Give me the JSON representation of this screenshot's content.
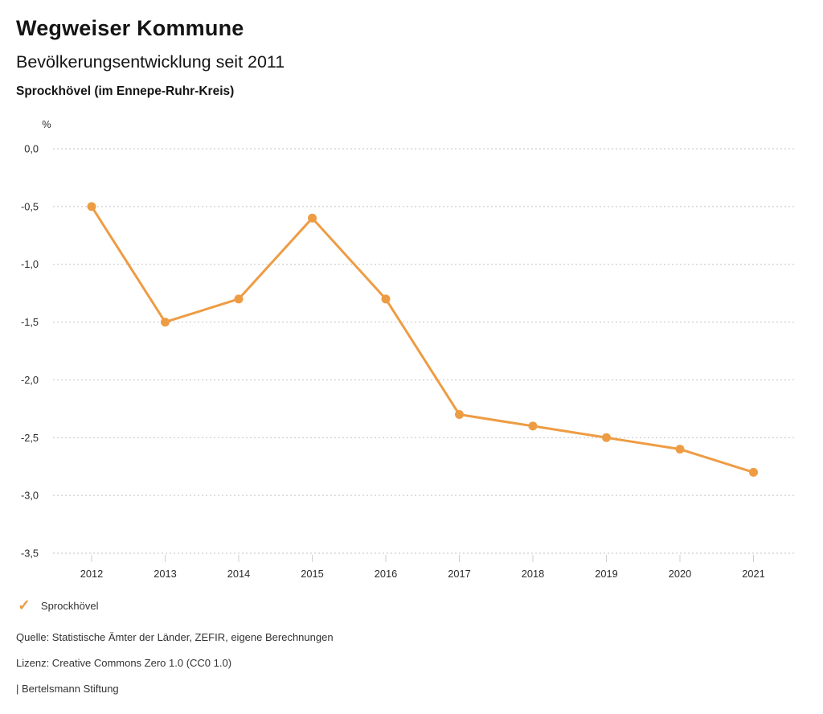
{
  "header": {
    "title": "Wegweiser Kommune",
    "subtitle": "Bevölkerungsentwicklung seit 2011",
    "region": "Sprockhövel (im Ennepe-Ruhr-Kreis)"
  },
  "chart_data": {
    "type": "line",
    "title": "Bevölkerungsentwicklung seit 2011",
    "subtitle": "Sprockhövel (im Ennepe-Ruhr-Kreis)",
    "unit": "%",
    "categories": [
      "2012",
      "2013",
      "2014",
      "2015",
      "2016",
      "2017",
      "2018",
      "2019",
      "2020",
      "2021"
    ],
    "series": [
      {
        "name": "Sprockhövel",
        "color": "#EE9C44",
        "values": [
          -0.5,
          -1.5,
          -1.3,
          -0.6,
          -1.3,
          -2.3,
          -2.4,
          -2.5,
          -2.6,
          -2.8
        ]
      }
    ],
    "ylim": [
      -3.5,
      0.0
    ],
    "ytick_step": 0.5,
    "ytick_labels": [
      "0,0",
      "-0,5",
      "-1,0",
      "-1,5",
      "-2,0",
      "-2,5",
      "-3,0",
      "-3,5"
    ],
    "grid": "horizontal-dotted",
    "grid_color": "#c3c3c3",
    "tick_color": "#cfcfcf",
    "legend_position": "bottom-left"
  },
  "legend": {
    "items": [
      {
        "label": "Sprockhövel",
        "color": "#EE9C44",
        "marker": "check"
      }
    ]
  },
  "footer": {
    "source": "Quelle: Statistische Ämter der Länder, ZEFIR, eigene Berechnungen",
    "license": "Lizenz: Creative Commons Zero 1.0 (CC0 1.0)",
    "attribution": "| Bertelsmann Stiftung"
  },
  "colors": {
    "accent": "#EE9C44",
    "grid": "#c3c3c3",
    "text": "#141414",
    "footer_text": "#333333"
  }
}
